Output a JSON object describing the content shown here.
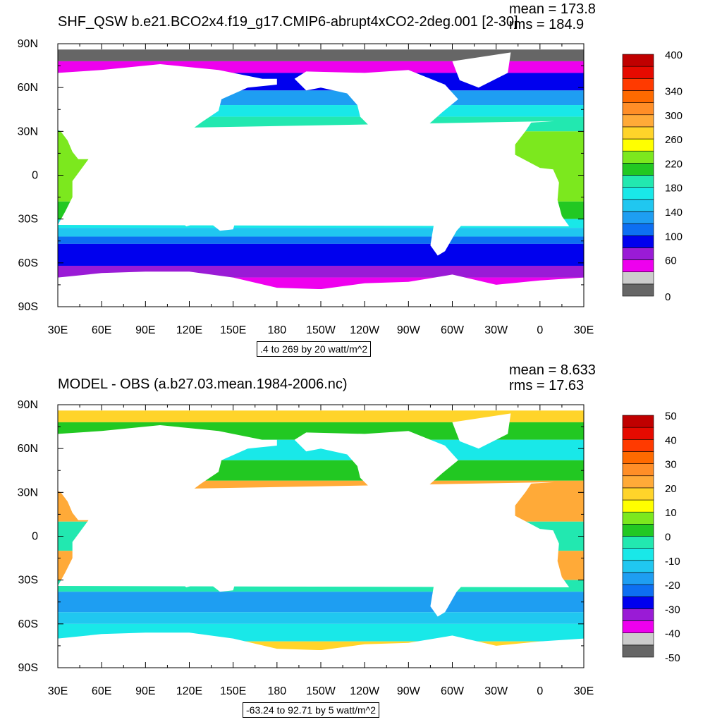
{
  "chart_data": [
    {
      "type": "heatmap",
      "title": "SHF_QSW b.e21.BCO2x4.f19_g17.CMIP6-abrupt4xCO2-2deg.001 [2-30]",
      "stats": {
        "mean": "mean = 173.8",
        "rms": "rms = 184.9"
      },
      "contour_info": ".4 to 269 by 20 watt/m^2",
      "xaxis": {
        "ticks": [
          "30E",
          "60E",
          "90E",
          "120E",
          "150E",
          "180",
          "150W",
          "120W",
          "90W",
          "60W",
          "30W",
          "0",
          "30E"
        ]
      },
      "yaxis": {
        "ticks": [
          "90N",
          "60N",
          "30N",
          "0",
          "30S",
          "60S",
          "90S"
        ]
      },
      "colorbar": {
        "colors": [
          "#666666",
          "#cccccc",
          "#ee00ee",
          "#9a1bd6",
          "#0000ee",
          "#0d6ff2",
          "#1e9ef2",
          "#20c7f0",
          "#19e8e8",
          "#22e8b0",
          "#22c822",
          "#7ce81e",
          "#ffff00",
          "#ffd42a",
          "#ffaa38",
          "#ff8e27",
          "#ff6a00",
          "#ff3a00",
          "#e60a00",
          "#c00000"
        ],
        "labels": [
          {
            "index": 0,
            "text": "0"
          },
          {
            "index": 3,
            "text": "60"
          },
          {
            "index": 5,
            "text": "100"
          },
          {
            "index": 7,
            "text": "140"
          },
          {
            "index": 9,
            "text": "180"
          },
          {
            "index": 11,
            "text": "220"
          },
          {
            "index": 13,
            "text": "260"
          },
          {
            "index": 15,
            "text": "300"
          },
          {
            "index": 17,
            "text": "340"
          },
          {
            "index": 20,
            "text": "400"
          }
        ]
      },
      "field_bands": [
        {
          "lat_top": 90,
          "lat_bottom": 78,
          "color": "#666666"
        },
        {
          "lat_top": 78,
          "lat_bottom": 70,
          "color": "#ee00ee"
        },
        {
          "lat_top": 70,
          "lat_bottom": 58,
          "color": "#0000ee"
        },
        {
          "lat_top": 58,
          "lat_bottom": 48,
          "color": "#1e9ef2"
        },
        {
          "lat_top": 48,
          "lat_bottom": 40,
          "color": "#19e8e8"
        },
        {
          "lat_top": 40,
          "lat_bottom": 30,
          "color": "#22e8b0"
        },
        {
          "lat_top": 30,
          "lat_bottom": -18,
          "color": "#7ce81e"
        },
        {
          "lat_top": -18,
          "lat_bottom": -30,
          "color": "#22c822"
        },
        {
          "lat_top": -30,
          "lat_bottom": -36,
          "color": "#19e8e8"
        },
        {
          "lat_top": -36,
          "lat_bottom": -42,
          "color": "#20c7f0"
        },
        {
          "lat_top": -42,
          "lat_bottom": -47,
          "color": "#0d6ff2"
        },
        {
          "lat_top": -47,
          "lat_bottom": -62,
          "color": "#0000ee"
        },
        {
          "lat_top": -62,
          "lat_bottom": -70,
          "color": "#9a1bd6"
        },
        {
          "lat_top": -70,
          "lat_bottom": -78,
          "color": "#ee00ee"
        },
        {
          "lat_top": -78,
          "lat_bottom": -90,
          "color": "#ffffff"
        }
      ]
    },
    {
      "type": "heatmap",
      "title": "MODEL - OBS (a.b27.03.mean.1984-2006.nc)",
      "stats": {
        "mean": "mean = 8.633",
        "rms": "rms = 17.63"
      },
      "contour_info": "-63.24 to 92.71 by 5 watt/m^2",
      "xaxis": {
        "ticks": [
          "30E",
          "60E",
          "90E",
          "120E",
          "150E",
          "180",
          "150W",
          "120W",
          "90W",
          "60W",
          "30W",
          "0",
          "30E"
        ]
      },
      "yaxis": {
        "ticks": [
          "90N",
          "60N",
          "30N",
          "0",
          "30S",
          "60S",
          "90S"
        ]
      },
      "colorbar": {
        "colors": [
          "#666666",
          "#cccccc",
          "#ee00ee",
          "#9a1bd6",
          "#0000ee",
          "#0d6ff2",
          "#1e9ef2",
          "#20c7f0",
          "#19e8e8",
          "#22e8b0",
          "#22c822",
          "#7ce81e",
          "#ffff00",
          "#ffd42a",
          "#ffaa38",
          "#ff8e27",
          "#ff6a00",
          "#ff3a00",
          "#e60a00",
          "#c00000"
        ],
        "labels": [
          {
            "index": 0,
            "text": "-50"
          },
          {
            "index": 2,
            "text": "-40"
          },
          {
            "index": 4,
            "text": "-30"
          },
          {
            "index": 6,
            "text": "-20"
          },
          {
            "index": 8,
            "text": "-10"
          },
          {
            "index": 10,
            "text": "0"
          },
          {
            "index": 12,
            "text": "10"
          },
          {
            "index": 14,
            "text": "20"
          },
          {
            "index": 16,
            "text": "30"
          },
          {
            "index": 18,
            "text": "40"
          },
          {
            "index": 20,
            "text": "50"
          }
        ]
      },
      "field_bands": [
        {
          "lat_top": 90,
          "lat_bottom": 78,
          "color": "#ffd42a"
        },
        {
          "lat_top": 78,
          "lat_bottom": 66,
          "color": "#22c822"
        },
        {
          "lat_top": 66,
          "lat_bottom": 52,
          "color": "#19e8e8"
        },
        {
          "lat_top": 52,
          "lat_bottom": 38,
          "color": "#22c822"
        },
        {
          "lat_top": 38,
          "lat_bottom": 10,
          "color": "#ffaa38"
        },
        {
          "lat_top": 10,
          "lat_bottom": -10,
          "color": "#22e8b0"
        },
        {
          "lat_top": -10,
          "lat_bottom": -30,
          "color": "#ffaa38"
        },
        {
          "lat_top": -30,
          "lat_bottom": -38,
          "color": "#22e8b0"
        },
        {
          "lat_top": -38,
          "lat_bottom": -52,
          "color": "#1e9ef2"
        },
        {
          "lat_top": -52,
          "lat_bottom": -60,
          "color": "#20c7f0"
        },
        {
          "lat_top": -60,
          "lat_bottom": -72,
          "color": "#19e8e8"
        },
        {
          "lat_top": -72,
          "lat_bottom": -78,
          "color": "#ffd42a"
        },
        {
          "lat_top": -78,
          "lat_bottom": -90,
          "color": "#ffffff"
        }
      ]
    }
  ],
  "land_color": "#ffffff"
}
